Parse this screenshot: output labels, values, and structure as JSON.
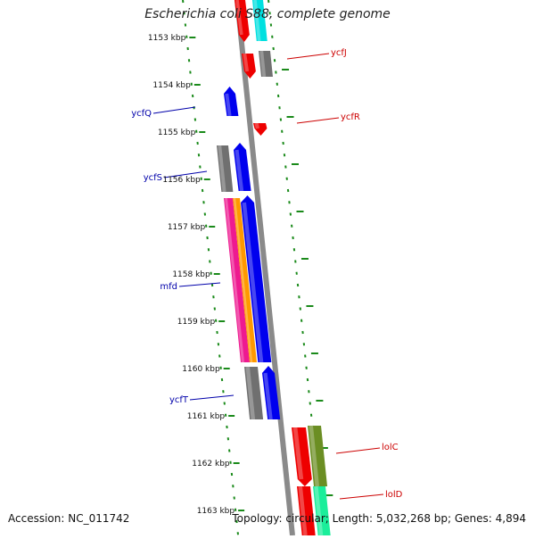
{
  "title": "Escherichia coli S88, complete genome",
  "footer": {
    "accession": "Accession: NC_011742",
    "summary": "Topology: circular; Length: 5,032,268 bp; Genes: 4,894"
  },
  "ruler_labels": [
    "1153 kbp",
    "1154 kbp",
    "1155 kbp",
    "1156 kbp",
    "1157 kbp",
    "1158 kbp",
    "1159 kbp",
    "1160 kbp",
    "1161 kbp",
    "1162 kbp",
    "1163 kbp"
  ],
  "genes_left": [
    "ycfQ",
    "ycfS",
    "mfd",
    "ycfT"
  ],
  "genes_right": [
    "ycfJ",
    "ycfR",
    "lolC",
    "lolD"
  ],
  "colors": {
    "ruler_tick": "#1a8a1a",
    "backbone": "#8a8a8a",
    "left_label": "#0000aa",
    "right_label": "#cc0000",
    "red": "#ee0000",
    "blue": "#0000ee",
    "gray": "#707070",
    "cyan": "#00e0e0",
    "magenta": "#ee1a90",
    "orange": "#ff9900",
    "olive": "#6b8e23",
    "mint": "#1aee9a"
  }
}
